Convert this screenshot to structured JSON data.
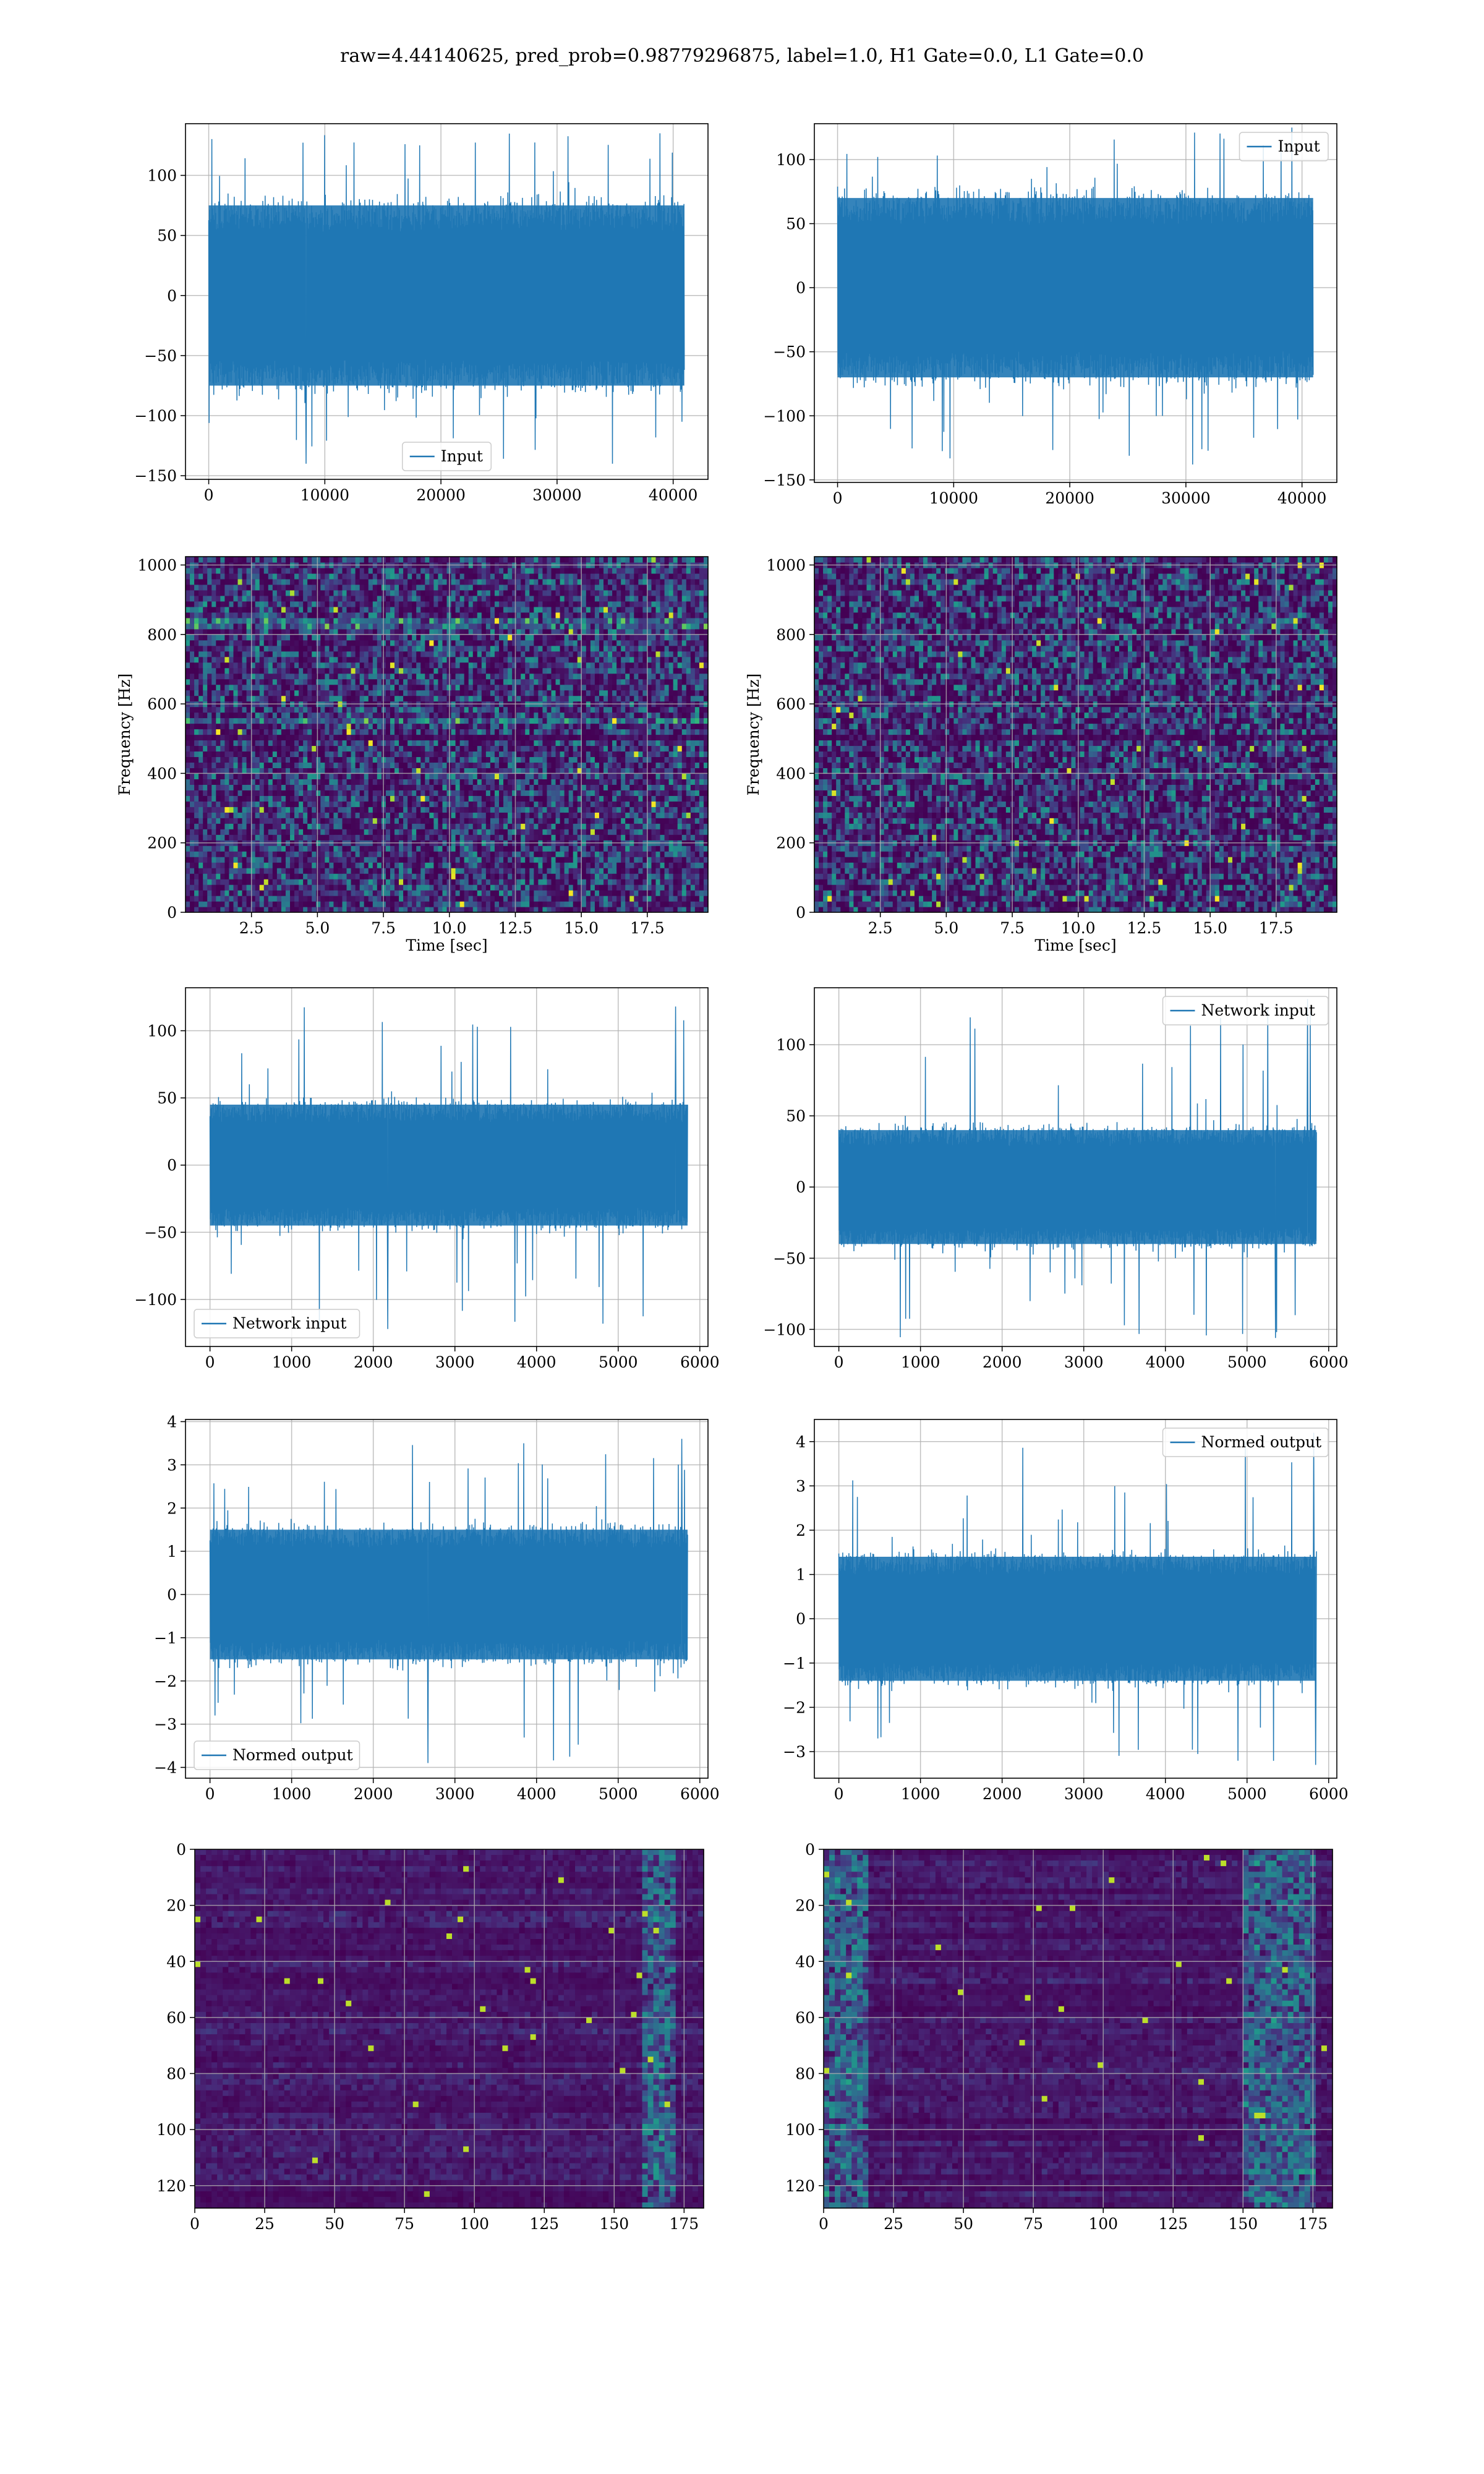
{
  "figure": {
    "suptitle": "raw=4.44140625, pred_prob=0.98779296875, label=1.0, H1 Gate=0.0, L1 Gate=0.0"
  },
  "colors": {
    "series": "#1f77b4",
    "viridis_low": "#440154",
    "viridis_mid": "#21918c",
    "viridis_high": "#fde725",
    "grid": "#b0b0b0"
  },
  "chart_data": [
    {
      "id": "r0c0",
      "type": "line",
      "series": [
        {
          "name": "Input",
          "envelope_min": -140,
          "envelope_max": 135,
          "core": [
            -75,
            75
          ]
        }
      ],
      "xlim": [
        -2000,
        43000
      ],
      "ylim": [
        -153,
        143
      ],
      "xticks": [
        0,
        10000,
        20000,
        30000,
        40000
      ],
      "xtick_labels": [
        "0",
        "10000",
        "20000",
        "30000",
        "40000"
      ],
      "yticks": [
        -150,
        -100,
        -50,
        0,
        50,
        100
      ],
      "ytick_labels": [
        "−150",
        "−100",
        "−50",
        "0",
        "50",
        "100"
      ],
      "data_x": [
        0,
        40960
      ],
      "xlabel": "",
      "ylabel": "",
      "legend_loc": "lower center",
      "grid": true
    },
    {
      "id": "r0c1",
      "type": "line",
      "series": [
        {
          "name": "Input",
          "envelope_min": -138,
          "envelope_max": 125,
          "core": [
            -70,
            70
          ]
        }
      ],
      "xlim": [
        -2000,
        43000
      ],
      "ylim": [
        -152,
        128
      ],
      "xticks": [
        0,
        10000,
        20000,
        30000,
        40000
      ],
      "xtick_labels": [
        "0",
        "10000",
        "20000",
        "30000",
        "40000"
      ],
      "yticks": [
        -150,
        -100,
        -50,
        0,
        50,
        100
      ],
      "ytick_labels": [
        "−150",
        "−100",
        "−50",
        "0",
        "50",
        "100"
      ],
      "data_x": [
        0,
        40960
      ],
      "xlabel": "",
      "ylabel": "",
      "legend_loc": "upper right",
      "grid": true
    },
    {
      "id": "r1c0",
      "type": "heatmap",
      "xlim": [
        0,
        19.8
      ],
      "ylim": [
        0,
        1024
      ],
      "xticks": [
        2.5,
        5,
        7.5,
        10,
        12.5,
        15,
        17.5
      ],
      "xtick_labels": [
        "2.5",
        "5.0",
        "7.5",
        "10.0",
        "12.5",
        "15.0",
        "17.5"
      ],
      "yticks": [
        0,
        200,
        400,
        600,
        800,
        1000
      ],
      "ytick_labels": [
        "0",
        "200",
        "400",
        "600",
        "800",
        "1000"
      ],
      "xlabel": "Time [sec]",
      "ylabel": "Frequency [Hz]",
      "bright_lines_hz": [
        830,
        550
      ],
      "dark_band_hz": [
        490,
        515
      ],
      "grid": true
    },
    {
      "id": "r1c1",
      "type": "heatmap",
      "xlim": [
        0,
        19.8
      ],
      "ylim": [
        0,
        1024
      ],
      "xticks": [
        2.5,
        5,
        7.5,
        10,
        12.5,
        15,
        17.5
      ],
      "xtick_labels": [
        "2.5",
        "5.0",
        "7.5",
        "10.0",
        "12.5",
        "15.0",
        "17.5"
      ],
      "yticks": [
        0,
        200,
        400,
        600,
        800,
        1000
      ],
      "ytick_labels": [
        "0",
        "200",
        "400",
        "600",
        "800",
        "1000"
      ],
      "xlabel": "Time [sec]",
      "ylabel": "Frequency [Hz]",
      "bright_lines_hz": [],
      "dark_band_hz": [
        490,
        515
      ],
      "grid": true
    },
    {
      "id": "r2c0",
      "type": "line",
      "series": [
        {
          "name": "Network input",
          "envelope_min": -122,
          "envelope_max": 118,
          "core": [
            -45,
            45
          ]
        }
      ],
      "xlim": [
        -300,
        6100
      ],
      "ylim": [
        -135,
        132
      ],
      "xticks": [
        0,
        1000,
        2000,
        3000,
        4000,
        5000,
        6000
      ],
      "xtick_labels": [
        "0",
        "1000",
        "2000",
        "3000",
        "4000",
        "5000",
        "6000"
      ],
      "yticks": [
        -100,
        -50,
        0,
        50,
        100
      ],
      "ytick_labels": [
        "−100",
        "−50",
        "0",
        "50",
        "100"
      ],
      "data_x": [
        0,
        5850
      ],
      "xlabel": "",
      "ylabel": "",
      "legend_loc": "lower left",
      "grid": true
    },
    {
      "id": "r2c1",
      "type": "line",
      "series": [
        {
          "name": "Network input",
          "envelope_min": -106,
          "envelope_max": 132,
          "core": [
            -40,
            40
          ]
        }
      ],
      "xlim": [
        -300,
        6100
      ],
      "ylim": [
        -112,
        140
      ],
      "xticks": [
        0,
        1000,
        2000,
        3000,
        4000,
        5000,
        6000
      ],
      "xtick_labels": [
        "0",
        "1000",
        "2000",
        "3000",
        "4000",
        "5000",
        "6000"
      ],
      "yticks": [
        -100,
        -50,
        0,
        50,
        100
      ],
      "ytick_labels": [
        "−100",
        "−50",
        "0",
        "50",
        "100"
      ],
      "data_x": [
        0,
        5850
      ],
      "xlabel": "",
      "ylabel": "",
      "legend_loc": "upper right",
      "grid": true
    },
    {
      "id": "r3c0",
      "type": "line",
      "series": [
        {
          "name": "Normed output",
          "envelope_min": -3.9,
          "envelope_max": 3.6,
          "core": [
            -1.5,
            1.5
          ]
        }
      ],
      "xlim": [
        -300,
        6100
      ],
      "ylim": [
        -4.25,
        4.05
      ],
      "xticks": [
        0,
        1000,
        2000,
        3000,
        4000,
        5000,
        6000
      ],
      "xtick_labels": [
        "0",
        "1000",
        "2000",
        "3000",
        "4000",
        "5000",
        "6000"
      ],
      "yticks": [
        -4,
        -3,
        -2,
        -1,
        0,
        1,
        2,
        3,
        4
      ],
      "ytick_labels": [
        "−4",
        "−3",
        "−2",
        "−1",
        "0",
        "1",
        "2",
        "3",
        "4"
      ],
      "data_x": [
        0,
        5850
      ],
      "xlabel": "",
      "ylabel": "",
      "legend_loc": "lower left",
      "grid": true
    },
    {
      "id": "r3c1",
      "type": "line",
      "series": [
        {
          "name": "Normed output",
          "envelope_min": -3.3,
          "envelope_max": 4.2,
          "core": [
            -1.4,
            1.4
          ]
        }
      ],
      "xlim": [
        -300,
        6100
      ],
      "ylim": [
        -3.6,
        4.5
      ],
      "xticks": [
        0,
        1000,
        2000,
        3000,
        4000,
        5000,
        6000
      ],
      "xtick_labels": [
        "0",
        "1000",
        "2000",
        "3000",
        "4000",
        "5000",
        "6000"
      ],
      "yticks": [
        -3,
        -2,
        -1,
        0,
        1,
        2,
        3,
        4
      ],
      "ytick_labels": [
        "−3",
        "−2",
        "−1",
        "0",
        "1",
        "2",
        "3",
        "4"
      ],
      "data_x": [
        0,
        5850
      ],
      "xlabel": "",
      "ylabel": "",
      "legend_loc": "upper right",
      "grid": true
    },
    {
      "id": "r4c0",
      "type": "heatmap",
      "xlim": [
        0,
        182
      ],
      "ylim": [
        128,
        0
      ],
      "xticks": [
        0,
        25,
        50,
        75,
        100,
        125,
        150,
        175
      ],
      "xtick_labels": [
        "0",
        "25",
        "50",
        "75",
        "100",
        "125",
        "150",
        "175"
      ],
      "yticks": [
        0,
        20,
        40,
        60,
        80,
        100,
        120
      ],
      "ytick_labels": [
        "0",
        "20",
        "40",
        "60",
        "80",
        "100",
        "120"
      ],
      "xlabel": "",
      "ylabel": "",
      "hot_columns": [
        160,
        172
      ],
      "grid": true
    },
    {
      "id": "r4c1",
      "type": "heatmap",
      "xlim": [
        0,
        182
      ],
      "ylim": [
        128,
        0
      ],
      "xticks": [
        0,
        25,
        50,
        75,
        100,
        125,
        150,
        175
      ],
      "xtick_labels": [
        "0",
        "25",
        "50",
        "75",
        "100",
        "125",
        "150",
        "175"
      ],
      "yticks": [
        0,
        20,
        40,
        60,
        80,
        100,
        120
      ],
      "ytick_labels": [
        "0",
        "20",
        "40",
        "60",
        "80",
        "100",
        "120"
      ],
      "xlabel": "",
      "ylabel": "",
      "hot_columns": [
        0,
        15,
        150,
        175
      ],
      "grid": true
    }
  ]
}
